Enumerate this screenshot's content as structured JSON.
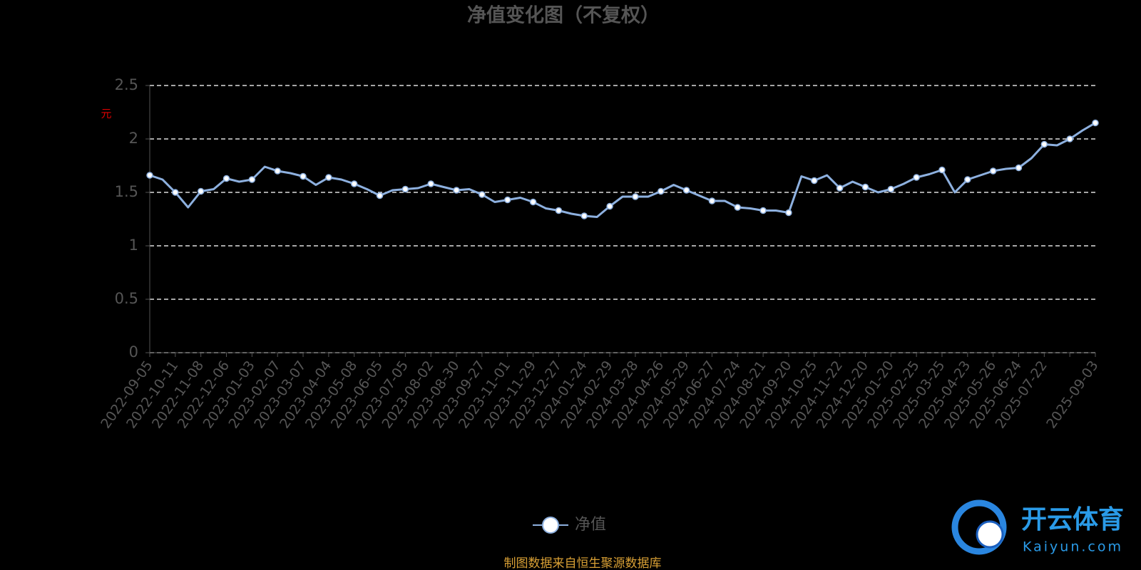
{
  "chart_data": {
    "type": "line",
    "title": "净值变化图（不复权）",
    "y_label": "元",
    "categories": [
      "2022-09-05",
      null,
      "2022-10-11",
      null,
      "2022-11-08",
      null,
      "2022-12-06",
      null,
      "2023-01-03",
      null,
      "2023-02-07",
      null,
      "2023-03-07",
      null,
      "2023-04-04",
      null,
      "2023-05-08",
      null,
      "2023-06-05",
      null,
      "2023-07-05",
      null,
      "2023-08-02",
      null,
      "2023-08-30",
      null,
      "2023-09-27",
      null,
      "2023-11-01",
      null,
      "2023-11-29",
      null,
      "2023-12-27",
      null,
      "2024-01-24",
      null,
      "2024-02-29",
      null,
      "2024-03-28",
      null,
      "2024-04-26",
      null,
      "2024-05-29",
      null,
      "2024-06-27",
      null,
      "2024-07-24",
      null,
      "2024-08-21",
      null,
      "2024-09-20",
      null,
      "2024-10-25",
      null,
      "2024-11-22",
      null,
      "2024-12-20",
      null,
      "2025-01-20",
      null,
      "2025-02-25",
      null,
      "2025-03-25",
      null,
      "2025-04-23",
      null,
      "2025-05-26",
      null,
      "2025-06-24",
      null,
      "2025-07-22",
      null,
      null,
      null,
      "2025-09-03"
    ],
    "series": [
      {
        "name": "净值",
        "color": "#8db0df",
        "values": [
          1.66,
          1.62,
          1.5,
          1.36,
          1.51,
          1.53,
          1.63,
          1.6,
          1.62,
          1.74,
          1.7,
          1.68,
          1.65,
          1.57,
          1.64,
          1.62,
          1.58,
          1.53,
          1.47,
          1.52,
          1.53,
          1.54,
          1.58,
          1.55,
          1.52,
          1.53,
          1.48,
          1.41,
          1.43,
          1.45,
          1.41,
          1.35,
          1.33,
          1.3,
          1.28,
          1.27,
          1.37,
          1.46,
          1.46,
          1.46,
          1.51,
          1.57,
          1.52,
          1.47,
          1.42,
          1.42,
          1.36,
          1.35,
          1.33,
          1.33,
          1.31,
          1.65,
          1.61,
          1.66,
          1.54,
          1.6,
          1.55,
          1.5,
          1.53,
          1.58,
          1.64,
          1.67,
          1.71,
          1.5,
          1.62,
          1.66,
          1.7,
          1.72,
          1.73,
          1.82,
          1.95,
          1.94,
          2.0,
          2.08,
          2.15
        ]
      }
    ],
    "ylim": [
      0,
      2.5
    ],
    "yticks": [
      0,
      0.5,
      1,
      1.5,
      2,
      2.5
    ],
    "grid": true,
    "legend": "bottom",
    "source": "制图数据来自恒生聚源数据库",
    "watermark": {
      "name": "开云体育",
      "site": "Kaiyun.com"
    }
  }
}
